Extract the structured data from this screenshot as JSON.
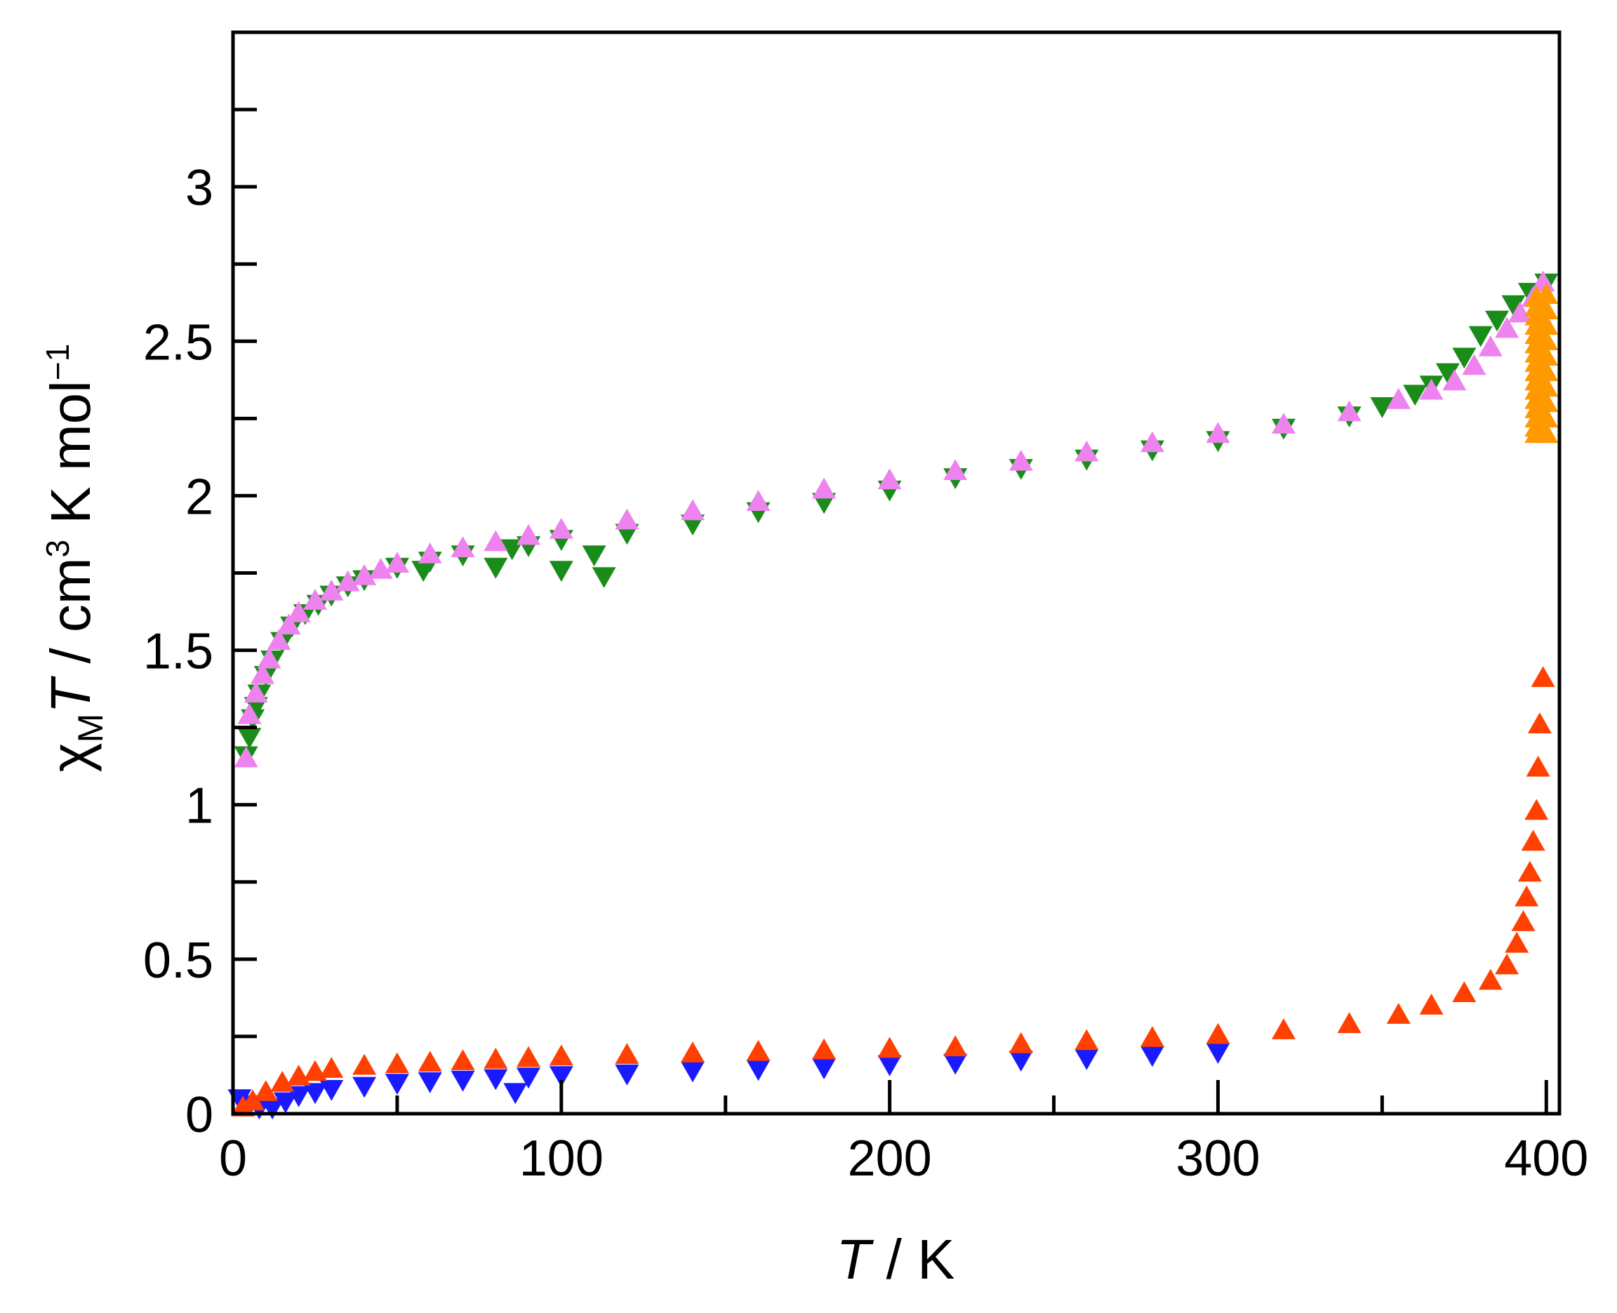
{
  "chart_data": {
    "type": "scatter",
    "title": "",
    "xlabel": {
      "italic": "T",
      "rest": " / K"
    },
    "ylabel": {
      "chi": "χ",
      "sub": "M",
      "italic": "T",
      "rest": " / cm",
      "sup1": "3",
      "rest2": " K mol",
      "sup2": "−1"
    },
    "xlim": [
      0,
      404
    ],
    "ylim": [
      0,
      3.5
    ],
    "x_major_ticks": [
      0,
      100,
      200,
      300,
      400
    ],
    "x_minor_ticks": [
      50,
      150,
      250,
      350
    ],
    "x_tick_labels": [
      "0",
      "100",
      "200",
      "300",
      "400"
    ],
    "y_major_ticks": [
      0,
      0.5,
      1,
      1.5,
      2,
      2.5,
      3
    ],
    "y_minor_ticks": [
      0.25,
      0.75,
      1.25,
      1.75,
      2.25,
      2.75,
      3.25
    ],
    "y_tick_labels": [
      "0",
      "0.5",
      "1",
      "1.5",
      "2",
      "2.5",
      "3"
    ],
    "grid": false,
    "legend": "none",
    "series": [
      {
        "marker": "triangle-down",
        "color": "#1a1aff",
        "points": [
          [
            2,
            0.05
          ],
          [
            5,
            0.03
          ],
          [
            8,
            0.02
          ],
          [
            12,
            0.02
          ],
          [
            16,
            0.04
          ],
          [
            20,
            0.06
          ],
          [
            25,
            0.07
          ],
          [
            30,
            0.08
          ],
          [
            40,
            0.09
          ],
          [
            50,
            0.1
          ],
          [
            60,
            0.105
          ],
          [
            70,
            0.11
          ],
          [
            80,
            0.115
          ],
          [
            86,
            0.07
          ],
          [
            90,
            0.12
          ],
          [
            100,
            0.125
          ],
          [
            120,
            0.13
          ],
          [
            140,
            0.14
          ],
          [
            160,
            0.145
          ],
          [
            180,
            0.15
          ],
          [
            200,
            0.16
          ],
          [
            220,
            0.165
          ],
          [
            240,
            0.175
          ],
          [
            260,
            0.18
          ],
          [
            280,
            0.19
          ],
          [
            300,
            0.2
          ]
        ]
      },
      {
        "marker": "triangle-up",
        "color": "#ff4000",
        "points": [
          [
            3,
            0.02
          ],
          [
            6,
            0.04
          ],
          [
            10,
            0.07
          ],
          [
            15,
            0.1
          ],
          [
            20,
            0.12
          ],
          [
            25,
            0.135
          ],
          [
            30,
            0.145
          ],
          [
            40,
            0.155
          ],
          [
            50,
            0.16
          ],
          [
            60,
            0.165
          ],
          [
            70,
            0.17
          ],
          [
            80,
            0.175
          ],
          [
            90,
            0.18
          ],
          [
            100,
            0.185
          ],
          [
            120,
            0.19
          ],
          [
            140,
            0.195
          ],
          [
            160,
            0.2
          ],
          [
            180,
            0.205
          ],
          [
            200,
            0.21
          ],
          [
            220,
            0.215
          ],
          [
            240,
            0.225
          ],
          [
            260,
            0.235
          ],
          [
            280,
            0.245
          ],
          [
            300,
            0.255
          ],
          [
            320,
            0.27
          ],
          [
            340,
            0.29
          ],
          [
            355,
            0.32
          ],
          [
            365,
            0.35
          ],
          [
            375,
            0.39
          ],
          [
            383,
            0.43
          ],
          [
            388,
            0.48
          ],
          [
            391,
            0.55
          ],
          [
            393,
            0.62
          ],
          [
            394,
            0.7
          ],
          [
            395,
            0.78
          ],
          [
            396,
            0.88
          ],
          [
            397,
            0.98
          ],
          [
            397.5,
            1.12
          ],
          [
            398,
            1.26
          ],
          [
            399,
            1.41
          ],
          [
            399.5,
            2.2
          ]
        ]
      },
      {
        "marker": "triangle-down",
        "color": "#1a8c1a",
        "points": [
          [
            4,
            1.16
          ],
          [
            5,
            1.22
          ],
          [
            6,
            1.28
          ],
          [
            7,
            1.32
          ],
          [
            8,
            1.36
          ],
          [
            10,
            1.42
          ],
          [
            12,
            1.47
          ],
          [
            15,
            1.53
          ],
          [
            18,
            1.58
          ],
          [
            22,
            1.62
          ],
          [
            26,
            1.65
          ],
          [
            30,
            1.68
          ],
          [
            35,
            1.71
          ],
          [
            40,
            1.73
          ],
          [
            50,
            1.77
          ],
          [
            58,
            1.76
          ],
          [
            60,
            1.79
          ],
          [
            70,
            1.81
          ],
          [
            80,
            1.77
          ],
          [
            85,
            1.83
          ],
          [
            90,
            1.84
          ],
          [
            100,
            1.76
          ],
          [
            100,
            1.86
          ],
          [
            110,
            1.81
          ],
          [
            113,
            1.74
          ],
          [
            120,
            1.88
          ],
          [
            140,
            1.91
          ],
          [
            160,
            1.95
          ],
          [
            180,
            1.98
          ],
          [
            200,
            2.02
          ],
          [
            220,
            2.06
          ],
          [
            240,
            2.09
          ],
          [
            260,
            2.12
          ],
          [
            280,
            2.15
          ],
          [
            300,
            2.18
          ],
          [
            320,
            2.22
          ],
          [
            340,
            2.26
          ],
          [
            350,
            2.29
          ],
          [
            360,
            2.33
          ],
          [
            365,
            2.36
          ],
          [
            370,
            2.4
          ],
          [
            375,
            2.45
          ],
          [
            380,
            2.52
          ],
          [
            385,
            2.57
          ],
          [
            390,
            2.62
          ],
          [
            395,
            2.66
          ],
          [
            400,
            2.69
          ]
        ]
      },
      {
        "marker": "triangle-up",
        "color": "#ee82ee",
        "points": [
          [
            4,
            1.15
          ],
          [
            5,
            1.29
          ],
          [
            7,
            1.36
          ],
          [
            9,
            1.42
          ],
          [
            11,
            1.47
          ],
          [
            14,
            1.53
          ],
          [
            17,
            1.58
          ],
          [
            20,
            1.62
          ],
          [
            25,
            1.66
          ],
          [
            30,
            1.69
          ],
          [
            35,
            1.72
          ],
          [
            40,
            1.74
          ],
          [
            45,
            1.76
          ],
          [
            50,
            1.78
          ],
          [
            60,
            1.81
          ],
          [
            70,
            1.83
          ],
          [
            80,
            1.85
          ],
          [
            90,
            1.87
          ],
          [
            100,
            1.89
          ],
          [
            120,
            1.92
          ],
          [
            140,
            1.95
          ],
          [
            160,
            1.98
          ],
          [
            180,
            2.02
          ],
          [
            200,
            2.05
          ],
          [
            220,
            2.08
          ],
          [
            240,
            2.11
          ],
          [
            260,
            2.14
          ],
          [
            280,
            2.17
          ],
          [
            300,
            2.2
          ],
          [
            320,
            2.23
          ],
          [
            340,
            2.27
          ],
          [
            355,
            2.31
          ],
          [
            365,
            2.34
          ],
          [
            372,
            2.37
          ],
          [
            378,
            2.42
          ],
          [
            383,
            2.48
          ],
          [
            388,
            2.54
          ],
          [
            392,
            2.59
          ],
          [
            396,
            2.64
          ],
          [
            399,
            2.69
          ]
        ]
      },
      {
        "marker": "triangle-up",
        "color": "#ff9900",
        "points": [
          [
            397,
            2.2
          ],
          [
            397,
            2.22
          ],
          [
            397,
            2.25
          ],
          [
            397,
            2.28
          ],
          [
            397,
            2.31
          ],
          [
            397,
            2.34
          ],
          [
            397,
            2.37
          ],
          [
            397,
            2.4
          ],
          [
            397,
            2.43
          ],
          [
            397,
            2.46
          ],
          [
            397,
            2.49
          ],
          [
            397,
            2.52
          ],
          [
            397,
            2.55
          ],
          [
            397,
            2.58
          ],
          [
            397,
            2.61
          ],
          [
            397,
            2.64
          ],
          [
            400,
            2.2
          ],
          [
            400,
            2.25
          ],
          [
            400,
            2.3
          ],
          [
            400,
            2.35
          ],
          [
            400,
            2.4
          ],
          [
            400,
            2.45
          ],
          [
            400,
            2.5
          ],
          [
            400,
            2.55
          ],
          [
            400,
            2.6
          ],
          [
            400,
            2.65
          ]
        ]
      }
    ]
  }
}
